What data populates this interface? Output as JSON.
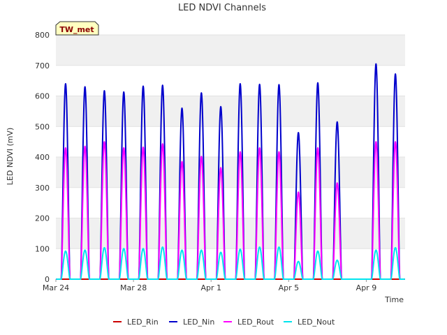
{
  "chart_data": {
    "type": "line",
    "title": "LED NDVI Channels",
    "xlabel": "Time",
    "ylabel": "LED NDVI (mV)",
    "ylim": [
      0,
      800
    ],
    "xlim": [
      "2024-03-24",
      "2024-04-11"
    ],
    "yticks": [
      0,
      100,
      200,
      300,
      400,
      500,
      600,
      700,
      800
    ],
    "xticks": [
      "Mar 24",
      "Mar 28",
      "Apr 1",
      "Apr 5",
      "Apr 9"
    ],
    "grid": "horizontal bands",
    "legend": "bottom",
    "badge": "TW_met",
    "days": [
      "Mar 24",
      "Mar 25",
      "Mar 26",
      "Mar 27",
      "Mar 28",
      "Mar 29",
      "Mar 30",
      "Mar 31",
      "Apr 1",
      "Apr 2",
      "Apr 3",
      "Apr 4",
      "Apr 5",
      "Apr 6",
      "Apr 7",
      "Apr 8",
      "Apr 9",
      "Apr 10"
    ],
    "series": [
      {
        "name": "LED_Rin",
        "color": "#cc0000",
        "daily_peak": [
          0,
          0,
          0,
          0,
          0,
          0,
          0,
          0,
          0,
          0,
          0,
          0,
          0,
          0,
          0,
          0,
          0,
          0
        ]
      },
      {
        "name": "LED_Nin",
        "color": "#0000cc",
        "daily_peak": [
          640,
          630,
          617,
          613,
          632,
          635,
          560,
          610,
          565,
          640,
          638,
          637,
          480,
          643,
          515,
          0,
          705,
          672
        ]
      },
      {
        "name": "LED_Rout",
        "color": "#ff00ff",
        "daily_peak": [
          430,
          435,
          450,
          430,
          432,
          443,
          385,
          402,
          365,
          417,
          430,
          417,
          285,
          430,
          315,
          0,
          450,
          450
        ]
      },
      {
        "name": "LED_Nout",
        "color": "#00e5ee",
        "daily_peak": [
          92,
          95,
          103,
          100,
          100,
          105,
          95,
          95,
          88,
          98,
          105,
          105,
          58,
          92,
          62,
          0,
          95,
          103
        ]
      }
    ]
  }
}
